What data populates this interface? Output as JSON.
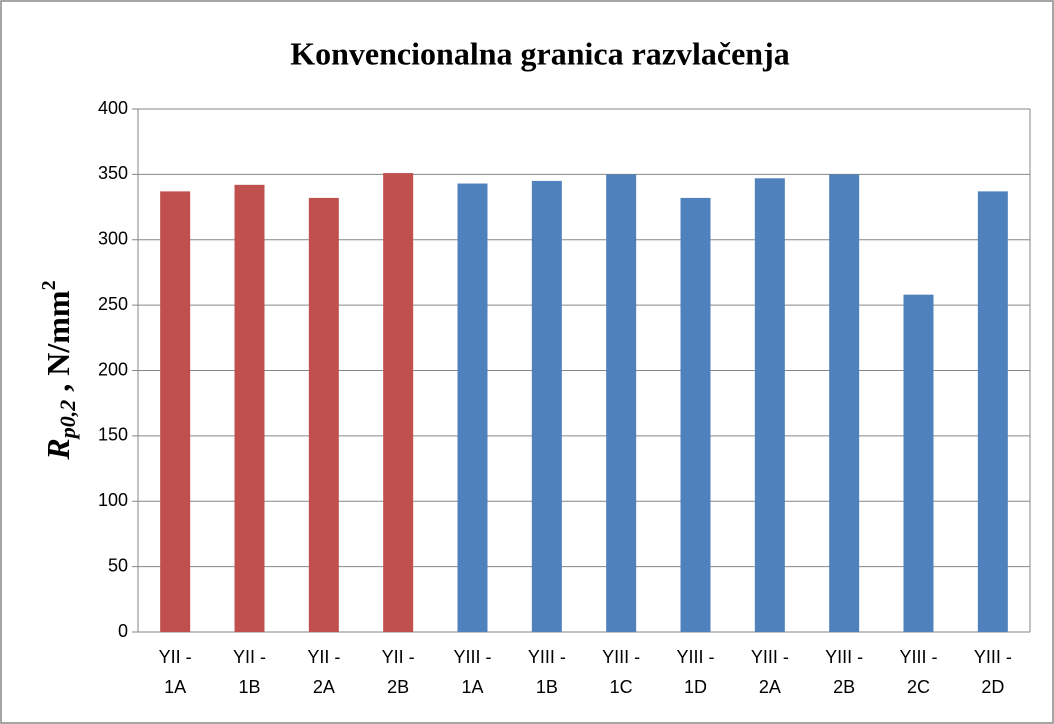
{
  "chart_data": {
    "type": "bar",
    "title": "Konvencionalna granica razvlačenja",
    "y_label": {
      "main": "R",
      "sub": "p0,2",
      "unit": " , N/mm",
      "sup": "2"
    },
    "categories": [
      "YII - 1A",
      "YII - 1B",
      "YII - 2A",
      "YII - 2B",
      "YIII - 1A",
      "YIII - 1B",
      "YIII - 1C",
      "YIII - 1D",
      "YIII - 2A",
      "YIII - 2B",
      "YIII - 2C",
      "YIII - 2D"
    ],
    "values": [
      337,
      342,
      332,
      351,
      343,
      345,
      350,
      332,
      347,
      350,
      258,
      337
    ],
    "colors": [
      "#c0504d",
      "#c0504d",
      "#c0504d",
      "#c0504d",
      "#4f81bd",
      "#4f81bd",
      "#4f81bd",
      "#4f81bd",
      "#4f81bd",
      "#4f81bd",
      "#4f81bd",
      "#4f81bd"
    ],
    "ylim": [
      0,
      400
    ],
    "yticks": [
      0,
      50,
      100,
      150,
      200,
      250,
      300,
      350,
      400
    ],
    "grid": true
  }
}
